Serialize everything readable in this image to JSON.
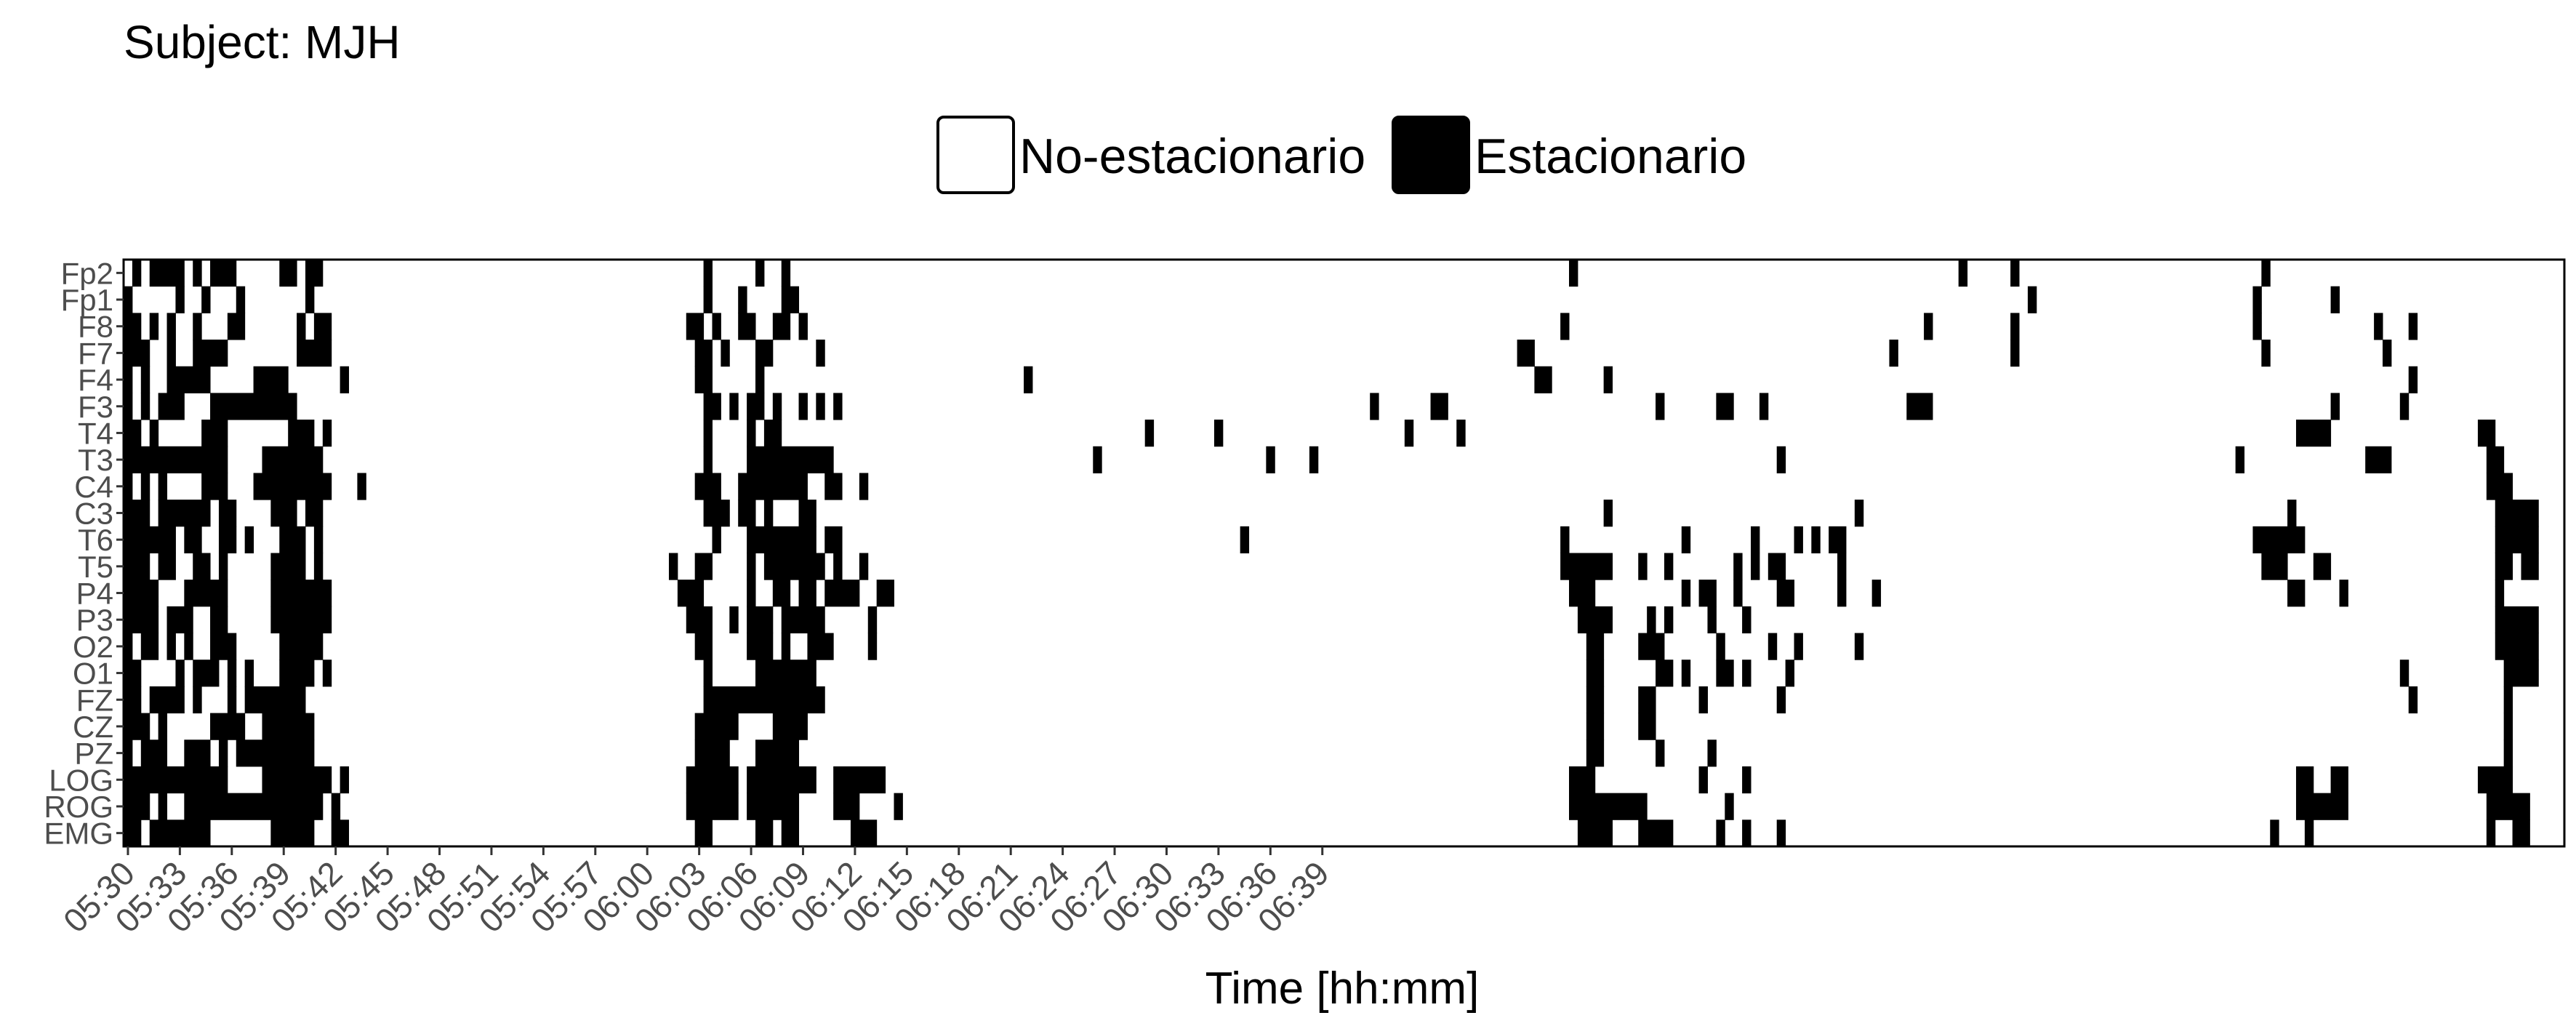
{
  "chart_data": {
    "type": "heatmap",
    "title": "Subject: MJH",
    "xlabel": "Time [hh:mm]",
    "ylabel": "",
    "legend": {
      "placement": "top-center",
      "entries": [
        {
          "label": "No-estacionario",
          "value": 0,
          "color": "#ffffff"
        },
        {
          "label": "Estacionario",
          "value": 1,
          "color": "#000000"
        }
      ]
    },
    "grid": false,
    "x_start": "05:30",
    "x_step_seconds": 30,
    "x_ticks": [
      "05:30",
      "05:33",
      "05:36",
      "05:39",
      "05:42",
      "05:45",
      "05:48",
      "05:51",
      "05:54",
      "05:57",
      "06:00",
      "06:03",
      "06:06",
      "06:09",
      "06:12",
      "06:15",
      "06:18",
      "06:21",
      "06:24",
      "06:27",
      "06:30",
      "06:33",
      "06:36",
      "06:39"
    ],
    "channels": [
      "Fp2",
      "Fp1",
      "F8",
      "F7",
      "F4",
      "F3",
      "T4",
      "T3",
      "C4",
      "C3",
      "T6",
      "T5",
      "P4",
      "P3",
      "O2",
      "O1",
      "FZ",
      "CZ",
      "PZ",
      "LOG",
      "ROG",
      "EMG"
    ],
    "grid_rows": [
      "010111101011100000110110000000000000000000000000000000000000000000010000010010000000000000000000000000000000000000000000000000000000000000000000000000000000000000000001000000000000000000000000000000000000000000001000001000000000000000000000000000010000000000",
      "100000100100010000000100000000000000000000000000000000000000000000010001000011000000000000000000000000000000000000000000000000000000000000000000000000000000000000000000000000000000000000000000000000000000000000000000000010000000000000000000000000100000000100000000000",
      "110101001000110000001011000000000000000000000000000000000000000001101001100110100000000000000000000000000000000000000000000000000000000000000000000000000000000000000010000000000000000000000000000000000000000010000000001000000000000000000000000000100000000000001000100000",
      "111001001111000000001111000000000000000000000000000000000000000000110100011000001000000000000000000000000000000000000000000000000000000000000000000000000000000001100000000000000000000000000000000000000000100000000000001000000000000000000000000000010000000000000100",
      "101001111100000111100000010000000000000000000000000000000000000000110000010000000000000000000000000000001000000000000000000000000000000000000000000000000000000000011000000100000000000000000000000000000000000000000000000000000000000000000000000000000000000000000000100000000",
      "101011100011111111110000000000000000000000000000000000000000000000011010110100101010000000000000000000000000000000000000000000000000000000000000100000011000000000000000000000000100000011000100000000000000001110000000000000000000000000000000000000000000000100000001000000000",
      "110100000111000000011101000000000000000000000000000000000000000000010000101100000000000000000000000000000000000000000010000000100000000000000000000010000010000000000000000000000000000000000000000000000000000000000000000000000000000000000000000000000001111000000000000000001100000000",
      "111111111111000011111110000000000000000000000000000000000000000000010000111111111100000000000000000000000000000010000000000000000000100001000000000000000000000000000000000000000000000000000001000000000000000000000000000000000000000000000000000010000000000000011100000000000110",
      "101010000111000111111111000100000000000000000000000000000000000000111001111111100110010000000000000000000000000000000000000000000000000000000000000000000000000000000000000000000000000000000000000000000000000000000000000000000000000000000000000000000000000000000000000000000111",
      "111011111101100001110110000000000000000000000000000000000000000000011101101000110000000000000000000000000000000000000000000000000000000000000000000000000000000000000000000100000000000000000000000000001000000000000000000000000000000000000000000000000010000000000000000000000011111",
      "111111011001101000111010000000000000000000000000000000000000000000001000111111110110000000000000000000000000000000000000000000000100000000000000000000000000000000000010000000000000100000001000010101100000000000000000000000000000000000000000000000111111000000000000000000000011111",
      "111011001101000001111010000000000000000000000000000000000000000100110000101111111010010000000000000000000000000000000000000000000000000000000000000000000000000000000011111100010010000000101011000000100000000000000000000000000000000000000000000000011100011000000000000000000011011",
      "111100011111000001111111000000000000000000000000000000000000000011100000100110110111100110000000000000000000000000000000000000000000000000000000000000000000000000000001110000000000101100100001100000100010000000000000000000000000000000000000000000000011000010000000000000000010000",
      "111101110011000001111111000000000000000000000000000000000000000001110010111011111000001000000000000000000000000000000000000000000000000000000000000000000000000000000000111100001010000100010000000000000000000000000000000000000000000000000000000000000000000000000000000000000011111",
      "101101010011100000111110000000000000000000000000000000000000000000110000111010011100001000000000000000000000000000000000000000000000000000000000000000000000000000000000011000011100000010000010010000001000000000000000000000000000000000000000000000000000000000000000000000000011111",
      "110000101110101000111101000000000000000000000000000000000000000000010000011111110000000000000000000000000000000000000000000000000000000000000000000000000000000000000000011000000110100011010000100000000000000000000000000000000000000000000000000000000000000000000001000000000001111",
      "110111101000101111111000000000000000000000000000000000000000000000011111111111111000000000000000000000000000000000000000000000000000000000000000000000000000000000000000011000011000001000000001000000000000000000000000000000000000000000000000000000000000000000000000100000000001000",
      "111010000011110011111100000000000000000000000000000000000000000000111110000111100000000000000000000000000000000000000000000000000000000000000000000000000000000000000000011000011000000000000000000000000000000000000000000000000000000000000000000000000000000000000000000000000001000",
      "101110011101011111111100000000000000000000000000000000000000000000111100011111000000000000000000000000000000000000000000000000000000000000000000000000000000000000000000011000000100000100000000000000000000000000000000000000000000000000000000000000000000000000000000000000000001000",
      "111111111111000011111111010000000000000000000000000000000000000001111110111111110011111100000000000000000000000000000000000000000000000000000000000000000000000000000001110000000000001000010000000000000000000000000000000000000000000000000000000000000001100110000000000000001111000",
      "111010011111111111111110100000000000000000000000000000000000000001111110111111000011100001000000000000000000000000000000000000000000000000000000000000000000000000000001111111110000000001000000000000000000000000000000000000000000000000000000000000000001111110000000000000000111110",
      "110111111100000001111100110000000000000000000000000000000000000000110000011011000000111000000000000000000000000000000000000000000000000000000000000000000000000000000000111100011110000010010001000000000000000000000000000000000000000000000000000000001000100000000000000000000100110"
    ]
  }
}
